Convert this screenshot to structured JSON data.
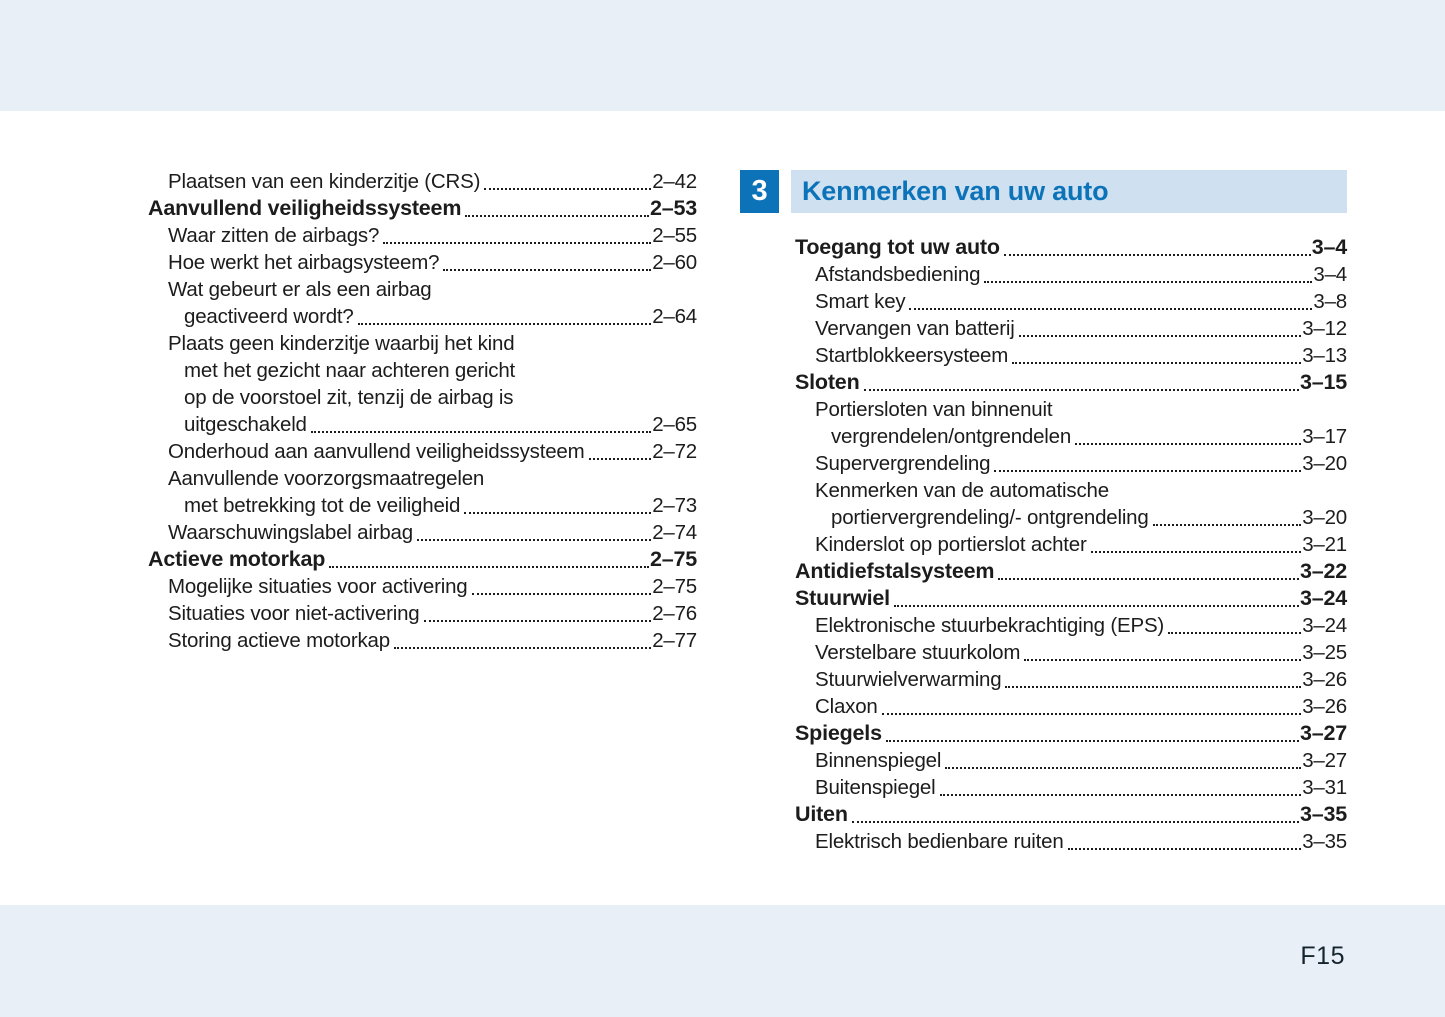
{
  "colors": {
    "accent_blue": "#0d73b9",
    "header_bar_bg": "#cfe1f1",
    "band_bg": "#e8eff7",
    "text": "#1c1c1c"
  },
  "footer": {
    "page_number": "F15"
  },
  "left_column": {
    "entries": [
      {
        "lines": [
          "Plaatsen van een kinderzitje (CRS)"
        ],
        "page": "2–42",
        "bold": false
      },
      {
        "lines": [
          "Aanvullend veiligheidssysteem"
        ],
        "page": "2–53",
        "bold": true
      },
      {
        "lines": [
          "Waar zitten de airbags?"
        ],
        "page": "2–55",
        "bold": false
      },
      {
        "lines": [
          "Hoe werkt het airbagsysteem?"
        ],
        "page": "2–60",
        "bold": false
      },
      {
        "lines": [
          "Wat gebeurt er als een airbag",
          "geactiveerd wordt?"
        ],
        "page": "2–64",
        "bold": false
      },
      {
        "lines": [
          "Plaats geen kinderzitje waarbij het kind",
          "met het gezicht naar achteren gericht",
          "op de voorstoel zit, tenzij de airbag is",
          "uitgeschakeld"
        ],
        "page": "2–65",
        "bold": false
      },
      {
        "lines": [
          "Onderhoud aan aanvullend veiligheidssysteem"
        ],
        "page": "2–72",
        "bold": false
      },
      {
        "lines": [
          "Aanvullende voorzorgsmaatregelen",
          "met betrekking tot de veiligheid"
        ],
        "page": "2–73",
        "bold": false
      },
      {
        "lines": [
          "Waarschuwingslabel airbag"
        ],
        "page": "2–74",
        "bold": false
      },
      {
        "lines": [
          "Actieve motorkap"
        ],
        "page": "2–75",
        "bold": true
      },
      {
        "lines": [
          "Mogelijke situaties voor activering"
        ],
        "page": "2–75",
        "bold": false
      },
      {
        "lines": [
          "Situaties voor niet-activering"
        ],
        "page": "2–76",
        "bold": false
      },
      {
        "lines": [
          "Storing actieve motorkap"
        ],
        "page": "2–77",
        "bold": false
      }
    ]
  },
  "right_column": {
    "chapter_number": "3",
    "chapter_title": "Kenmerken van uw auto",
    "entries": [
      {
        "lines": [
          "Toegang tot uw auto"
        ],
        "page": "3–4",
        "bold": true
      },
      {
        "lines": [
          "Afstandsbediening"
        ],
        "page": "3–4",
        "bold": false
      },
      {
        "lines": [
          "Smart key"
        ],
        "page": "3–8",
        "bold": false
      },
      {
        "lines": [
          "Vervangen van batterij"
        ],
        "page": "3–12",
        "bold": false
      },
      {
        "lines": [
          "Startblokkeersysteem"
        ],
        "page": "3–13",
        "bold": false
      },
      {
        "lines": [
          "Sloten"
        ],
        "page": "3–15",
        "bold": true
      },
      {
        "lines": [
          "Portiersloten van binnenuit",
          "vergrendelen/ontgrendelen"
        ],
        "page": "3–17",
        "bold": false
      },
      {
        "lines": [
          "Supervergrendeling"
        ],
        "page": "3–20",
        "bold": false
      },
      {
        "lines": [
          "Kenmerken van de automatische",
          "portiervergrendeling/- ontgrendeling"
        ],
        "page": "3–20",
        "bold": false
      },
      {
        "lines": [
          "Kinderslot op portierslot achter"
        ],
        "page": "3–21",
        "bold": false
      },
      {
        "lines": [
          "Antidiefstalsysteem"
        ],
        "page": "3–22",
        "bold": true
      },
      {
        "lines": [
          "Stuurwiel"
        ],
        "page": "3–24",
        "bold": true
      },
      {
        "lines": [
          "Elektronische stuurbekrachtiging (EPS)"
        ],
        "page": "3–24",
        "bold": false
      },
      {
        "lines": [
          "Verstelbare stuurkolom"
        ],
        "page": "3–25",
        "bold": false
      },
      {
        "lines": [
          "Stuurwielverwarming"
        ],
        "page": "3–26",
        "bold": false
      },
      {
        "lines": [
          "Claxon"
        ],
        "page": "3–26",
        "bold": false
      },
      {
        "lines": [
          "Spiegels"
        ],
        "page": "3–27",
        "bold": true
      },
      {
        "lines": [
          "Binnenspiegel"
        ],
        "page": "3–27",
        "bold": false
      },
      {
        "lines": [
          "Buitenspiegel"
        ],
        "page": "3–31",
        "bold": false
      },
      {
        "lines": [
          "Uiten"
        ],
        "page": "3–35",
        "bold": true
      },
      {
        "lines": [
          "Elektrisch bedienbare ruiten"
        ],
        "page": "3–35",
        "bold": false
      }
    ]
  }
}
